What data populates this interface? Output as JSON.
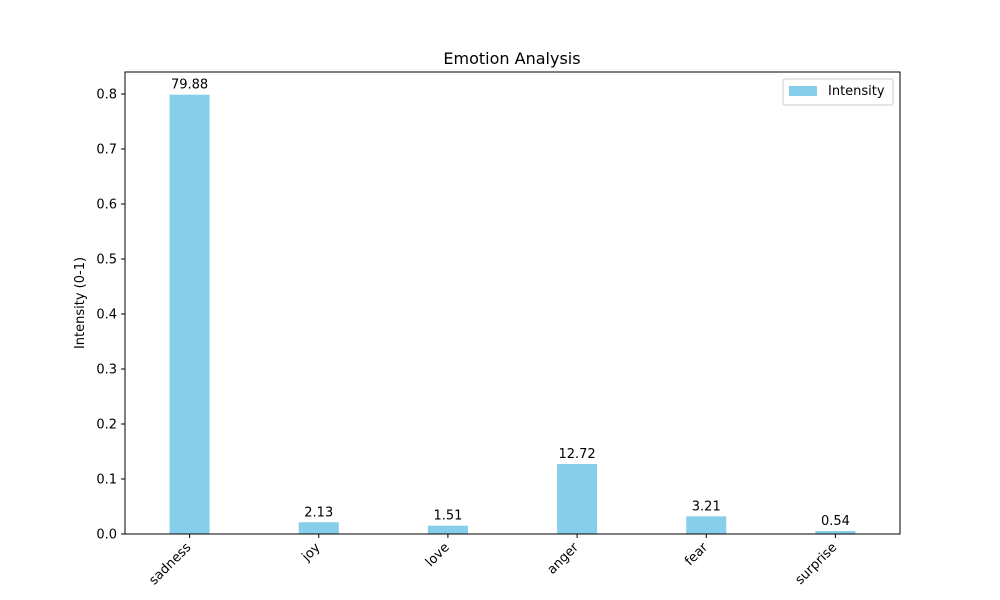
{
  "chart_data": {
    "type": "bar",
    "title": "Emotion Analysis",
    "xlabel": "",
    "ylabel": "Intensity (0-1)",
    "categories": [
      "sadness",
      "joy",
      "love",
      "anger",
      "fear",
      "surprise"
    ],
    "series": [
      {
        "name": "Intensity",
        "values": [
          0.7988,
          0.0213,
          0.0151,
          0.1272,
          0.0321,
          0.0054
        ],
        "labels": [
          "79.88",
          "2.13",
          "1.51",
          "12.72",
          "3.21",
          "0.54"
        ],
        "color": "#87CEEB"
      }
    ],
    "ylim": [
      0,
      0.84
    ],
    "yticks": [
      0.0,
      0.1,
      0.2,
      0.3,
      0.4,
      0.5,
      0.6,
      0.7,
      0.8
    ],
    "ytick_labels": [
      "0.0",
      "0.1",
      "0.2",
      "0.3",
      "0.4",
      "0.5",
      "0.6",
      "0.7",
      "0.8"
    ],
    "grid": false,
    "legend_position": "top-right",
    "xtick_rotation_deg": 45
  }
}
